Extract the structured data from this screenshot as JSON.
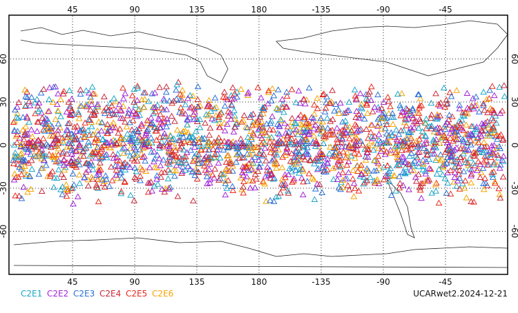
{
  "chart_data": {
    "type": "map",
    "xlim": [
      0,
      360
    ],
    "ylim": [
      -90,
      90
    ],
    "xticks": [
      45,
      90,
      135,
      180,
      {
        "value": 225,
        "label": "-135"
      },
      {
        "value": 270,
        "label": "-90"
      },
      {
        "value": 315,
        "label": "-45"
      }
    ],
    "yticks": [
      -60,
      -30,
      0,
      30,
      60
    ],
    "grid": true,
    "series": [
      {
        "name": "C2E1",
        "color": "#1aa6c8"
      },
      {
        "name": "C2E2",
        "color": "#a224d8"
      },
      {
        "name": "C2E3",
        "color": "#2a6fd6"
      },
      {
        "name": "C2E4",
        "color": "#c8283a"
      },
      {
        "name": "C2E5",
        "color": "#e82a1c"
      },
      {
        "name": "C2E6",
        "color": "#f5a400"
      }
    ],
    "title": "UCARwet2.2024-12-21"
  }
}
